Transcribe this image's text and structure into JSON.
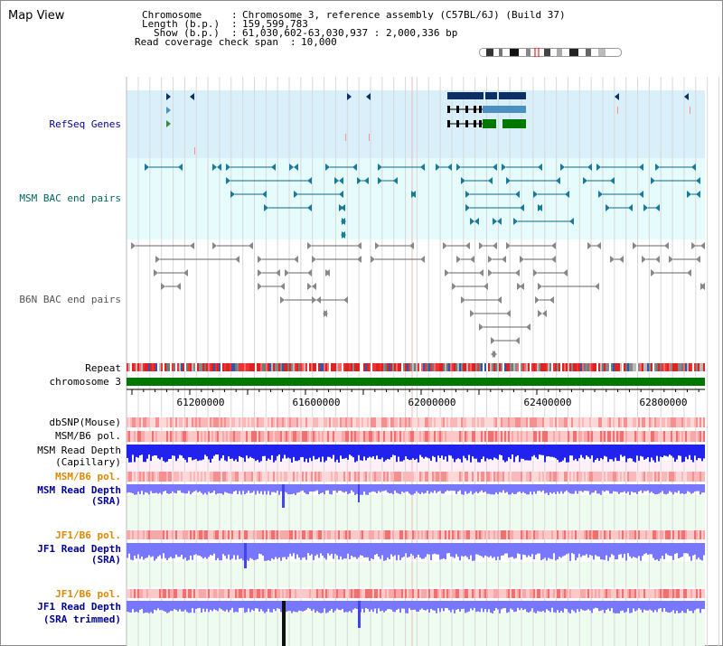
{
  "view_title": "Map View",
  "info": {
    "chromosome_key": "Chromosome",
    "chromosome_value": "Chromosome 3, reference assembly (C57BL/6J) (Build 37)",
    "length_key": "Length (b.p.)",
    "length_value": "159,599,783",
    "show_key": "Show (b.p.)",
    "show_value": "61,030,602-63,030,937 : 2,000,336 bp",
    "coverage_key": "Read coverage check span",
    "coverage_value": "10,000"
  },
  "tracks": {
    "refseq": "RefSeq Genes",
    "msm_bac": "MSM BAC end pairs",
    "b6n_bac": "B6N BAC end pairs",
    "repeat": "Repeat",
    "chromosome": "chromosome 3",
    "dbsnp": "dbSNP(Mouse)",
    "msm_pol1": "MSM/B6 pol.",
    "msm_depth_cap_1": "MSM Read Depth",
    "msm_depth_cap_2": "(Capillary)",
    "msm_pol2": "MSM/B6 pol.",
    "msm_depth_sra_1": "MSM Read Depth",
    "msm_depth_sra_2": "(SRA)",
    "jf1_pol1": "JF1/B6 pol.",
    "jf1_depth_sra_1": "JF1 Read Depth",
    "jf1_depth_sra_2": "(SRA)",
    "jf1_pol2": "JF1/B6 pol.",
    "jf1_depth_trim_1": "JF1 Read Depth",
    "jf1_depth_trim_2": "(SRA trimmed)"
  },
  "axis_ticks": [
    "61200000",
    "61600000",
    "62000000",
    "62400000",
    "62800000"
  ],
  "colors": {
    "label_blue": "#000099",
    "label_teal": "#006666",
    "label_orange": "#dd8800",
    "refseq_bg": "#d9f0fb",
    "msm_bg": "#e6fbfb",
    "chromosome_bar": "#007700",
    "gene_navy": "#0b2f66",
    "gene_blue": "#4a90c0",
    "gene_green": "#007700",
    "depth_blue": "#2222ee",
    "depth_light": "#7777ff"
  }
}
